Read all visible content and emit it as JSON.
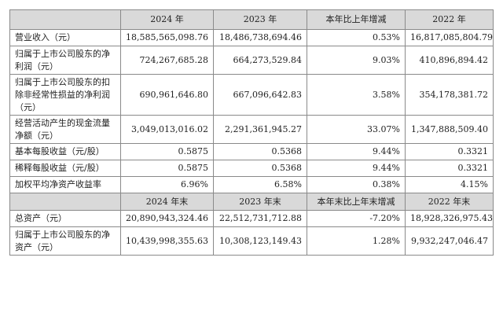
{
  "header1": [
    "2024 年",
    "2023 年",
    "本年比上年增减",
    "2022 年"
  ],
  "rows1": [
    {
      "label": "营业收入（元）",
      "v": [
        "18,585,565,098.76",
        "18,486,738,694.46",
        "0.53%",
        "16,817,085,804.79"
      ]
    },
    {
      "label": "归属于上市公司股东的净利润（元）",
      "v": [
        "724,267,685.28",
        "664,273,529.84",
        "9.03%",
        "410,896,894.42"
      ]
    },
    {
      "label": "归属于上市公司股东的扣除非经常性损益的净利润（元）",
      "v": [
        "690,961,646.80",
        "667,096,642.83",
        "3.58%",
        "354,178,381.72"
      ]
    },
    {
      "label": "经营活动产生的现金流量净额（元）",
      "v": [
        "3,049,013,016.02",
        "2,291,361,945.27",
        "33.07%",
        "1,347,888,509.40"
      ]
    },
    {
      "label": "基本每股收益（元/股）",
      "v": [
        "0.5875",
        "0.5368",
        "9.44%",
        "0.3321"
      ]
    },
    {
      "label": "稀释每股收益（元/股）",
      "v": [
        "0.5875",
        "0.5368",
        "9.44%",
        "0.3321"
      ]
    },
    {
      "label": "加权平均净资产收益率",
      "v": [
        "6.96%",
        "6.58%",
        "0.38%",
        "4.15%"
      ]
    }
  ],
  "header2": [
    "2024 年末",
    "2023 年末",
    "本年末比上年末增减",
    "2022 年末"
  ],
  "rows2": [
    {
      "label": "总资产（元）",
      "v": [
        "20,890,943,324.46",
        "22,512,731,712.88",
        "-7.20%",
        "18,928,326,975.43"
      ]
    },
    {
      "label": "归属于上市公司股东的净资产（元）",
      "v": [
        "10,439,998,355.63",
        "10,308,123,149.43",
        "1.28%",
        "9,932,247,046.47"
      ]
    }
  ]
}
